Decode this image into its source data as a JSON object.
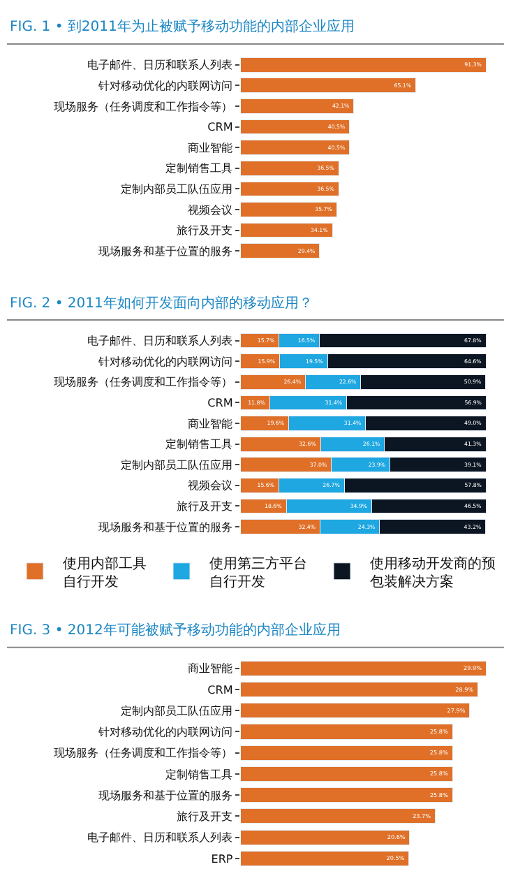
{
  "chart_data": [
    {
      "type": "bar",
      "orientation": "horizontal",
      "title": "FIG. 1 • 到2011年为止被赋予移动功能的内部企业应用",
      "categories": [
        "电子邮件、日历和联系人列表",
        "针对移动优化的内联网访问",
        "现场服务（任务调度和工作指令等）",
        "CRM",
        "商业智能",
        "定制销售工具",
        "定制内部员工队伍应用",
        "视频会议",
        "旅行及开支",
        "现场服务和基于位置的服务"
      ],
      "values": [
        91.3,
        65.1,
        42.1,
        40.5,
        40.5,
        36.5,
        36.5,
        35.7,
        34.1,
        29.4
      ],
      "value_labels": [
        "91.3%",
        "65.1%",
        "42.1%",
        "40.5%",
        "40.5%",
        "36.5%",
        "36.5%",
        "35.7%",
        "34.1%",
        "29.4%"
      ],
      "color": "#e07028"
    },
    {
      "type": "bar",
      "orientation": "horizontal",
      "stacked": true,
      "legend": "bottom",
      "title": "FIG. 2 • 2011年如何开发面向内部的移动应用？",
      "categories": [
        "电子邮件、日历和联系人列表",
        "针对移动优化的内联网访问",
        "现场服务（任务调度和工作指令等）",
        "CRM",
        "商业智能",
        "定制销售工具",
        "定制内部员工队伍应用",
        "视频会议",
        "旅行及开支",
        "现场服务和基于位置的服务"
      ],
      "series": [
        {
          "name": "使用内部工具自行开发",
          "color": "#e07028",
          "values": [
            15.7,
            15.9,
            26.4,
            11.8,
            19.6,
            32.6,
            37.0,
            15.6,
            18.6,
            32.4
          ],
          "value_labels": [
            "15.7%",
            "15.9%",
            "26.4%",
            "11.8%",
            "19.6%",
            "32.6%",
            "37.0%",
            "15.6%",
            "18.6%",
            "32.4%"
          ]
        },
        {
          "name": "使用第三方平台自行开发",
          "color": "#1ea7e1",
          "values": [
            16.5,
            19.5,
            22.6,
            31.4,
            31.4,
            26.1,
            23.9,
            26.7,
            34.9,
            24.3
          ],
          "value_labels": [
            "16.5%",
            "19.5%",
            "22.6%",
            "31.4%",
            "31.4%",
            "26.1%",
            "23.9%",
            "26.7%",
            "34.9%",
            "24.3%"
          ]
        },
        {
          "name": "使用移动开发商的预包装解决方案",
          "color": "#0b1622",
          "values": [
            67.8,
            64.6,
            50.9,
            56.9,
            49.0,
            41.3,
            39.1,
            57.8,
            46.5,
            43.2
          ],
          "value_labels": [
            "67.8%",
            "64.6%",
            "50.9%",
            "56.9%",
            "49.0%",
            "41.3%",
            "39.1%",
            "57.8%",
            "46.5%",
            "43.2%"
          ]
        }
      ]
    },
    {
      "type": "bar",
      "orientation": "horizontal",
      "title": "FIG. 3 • 2012年可能被赋予移动功能的内部企业应用",
      "categories": [
        "商业智能",
        "CRM",
        "定制内部员工队伍应用",
        "针对移动优化的内联网访问",
        "现场服务（任务调度和工作指令等）",
        "定制销售工具",
        "现场服务和基于位置的服务",
        "旅行及开支",
        "电子邮件、日历和联系人列表",
        "ERP"
      ],
      "values": [
        29.9,
        28.9,
        27.9,
        25.8,
        25.8,
        25.8,
        25.8,
        23.7,
        20.6,
        20.5
      ],
      "value_labels": [
        "29.9%",
        "28.9%",
        "27.9%",
        "25.8%",
        "25.8%",
        "25.8%",
        "25.8%",
        "23.7%",
        "20.6%",
        "20.5%"
      ],
      "color": "#e07028"
    }
  ]
}
